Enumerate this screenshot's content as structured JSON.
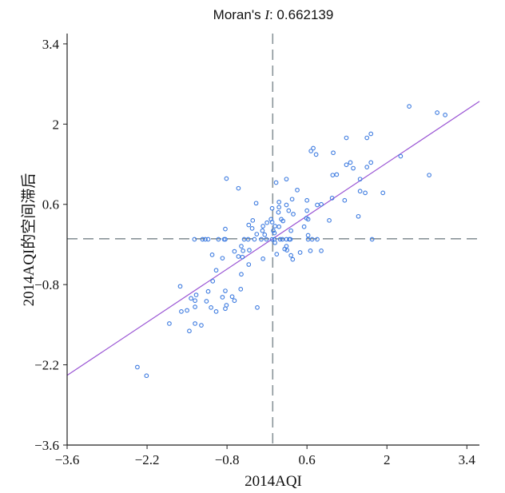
{
  "chart_data": {
    "type": "scatter",
    "title": "Moran's I: 0.662139",
    "title_prefix": "Moran's ",
    "title_italic": "I",
    "title_value": ": 0.662139",
    "moran_i": 0.662139,
    "xlabel": "2014AQI",
    "ylabel": "2014AQI的空间滞后",
    "xlim": [
      -3.6,
      3.62
    ],
    "ylim": [
      -3.6,
      3.58
    ],
    "xticks": [
      "-3.6",
      "-2.2",
      "-0.8",
      "0.6",
      "2",
      "3.4"
    ],
    "yticks": [
      "3.4",
      "2",
      "0.6",
      "-0.8",
      "-2.2",
      "-3.6"
    ],
    "grid": false,
    "reference_lines": {
      "x": 0,
      "y": 0,
      "style": "dashed"
    },
    "fit_line": {
      "slope": 0.662139,
      "intercept": 0
    },
    "colors": {
      "points": "#3d7be0",
      "fit_line": "#9a55d4",
      "reference_lines": "#8a9499"
    },
    "points": [
      [
        -0.81,
        1.05
      ],
      [
        -0.6,
        0.88
      ],
      [
        -0.83,
        0.17
      ],
      [
        -1.37,
        -0.01
      ],
      [
        -1.23,
        -0.01
      ],
      [
        -1.18,
        -0.01
      ],
      [
        -1.13,
        -0.01
      ],
      [
        -0.95,
        -0.01
      ],
      [
        -0.85,
        -0.01
      ],
      [
        -0.83,
        -0.01
      ],
      [
        -0.6,
        -0.31
      ],
      [
        -0.67,
        -0.22
      ],
      [
        -1.06,
        -0.28
      ],
      [
        -0.88,
        -0.34
      ],
      [
        -0.99,
        -0.55
      ],
      [
        -0.55,
        -0.62
      ],
      [
        -1.05,
        -0.74
      ],
      [
        -1.62,
        -0.83
      ],
      [
        -1.13,
        -0.92
      ],
      [
        -0.83,
        -0.91
      ],
      [
        -0.56,
        -0.88
      ],
      [
        -1.34,
        -0.98
      ],
      [
        -1.43,
        -1.04
      ],
      [
        -1.36,
        -1.08
      ],
      [
        -1.16,
        -1.09
      ],
      [
        -0.88,
        -1.02
      ],
      [
        -0.71,
        -1.01
      ],
      [
        -0.67,
        -1.08
      ],
      [
        -1.36,
        -1.19
      ],
      [
        -1.08,
        -1.2
      ],
      [
        -0.81,
        -1.16
      ],
      [
        -0.83,
        -1.22
      ],
      [
        -0.27,
        -1.2
      ],
      [
        -1.6,
        -1.27
      ],
      [
        -1.5,
        -1.25
      ],
      [
        -0.99,
        -1.27
      ],
      [
        -1.81,
        -1.48
      ],
      [
        -1.36,
        -1.48
      ],
      [
        -1.25,
        -1.51
      ],
      [
        -1.46,
        -1.61
      ],
      [
        -2.37,
        -2.24
      ],
      [
        -2.21,
        -2.39
      ],
      [
        2.39,
        2.31
      ],
      [
        2.88,
        2.2
      ],
      [
        3.02,
        2.16
      ],
      [
        1.29,
        1.76
      ],
      [
        1.65,
        1.76
      ],
      [
        1.72,
        1.83
      ],
      [
        0.71,
        1.58
      ],
      [
        0.67,
        1.53
      ],
      [
        0.76,
        1.47
      ],
      [
        1.06,
        1.5
      ],
      [
        1.29,
        1.29
      ],
      [
        1.36,
        1.33
      ],
      [
        1.41,
        1.23
      ],
      [
        1.65,
        1.25
      ],
      [
        1.72,
        1.33
      ],
      [
        2.24,
        1.44
      ],
      [
        2.74,
        1.11
      ],
      [
        1.05,
        1.11
      ],
      [
        1.12,
        1.12
      ],
      [
        1.53,
        1.04
      ],
      [
        0.24,
        1.04
      ],
      [
        0.06,
        0.98
      ],
      [
        0.43,
        0.85
      ],
      [
        1.53,
        0.83
      ],
      [
        1.62,
        0.8
      ],
      [
        1.93,
        0.8
      ],
      [
        1.04,
        0.71
      ],
      [
        1.26,
        0.67
      ],
      [
        0.6,
        0.67
      ],
      [
        0.34,
        0.69
      ],
      [
        0.11,
        0.64
      ],
      [
        -0.29,
        0.62
      ],
      [
        0.24,
        0.59
      ],
      [
        0.78,
        0.59
      ],
      [
        0.85,
        0.6
      ],
      [
        0.11,
        0.55
      ],
      [
        -0.01,
        0.53
      ],
      [
        0.28,
        0.49
      ],
      [
        0.36,
        0.43
      ],
      [
        0.1,
        0.46
      ],
      [
        0.6,
        0.49
      ],
      [
        0.59,
        0.36
      ],
      [
        0.62,
        0.34
      ],
      [
        0.99,
        0.32
      ],
      [
        1.5,
        0.39
      ],
      [
        -0.35,
        0.32
      ],
      [
        -0.1,
        0.28
      ],
      [
        0.15,
        0.34
      ],
      [
        0.18,
        0.31
      ],
      [
        -0.03,
        0.34
      ],
      [
        -0.01,
        0.29
      ],
      [
        -0.42,
        0.24
      ],
      [
        -0.36,
        0.18
      ],
      [
        -0.17,
        0.22
      ],
      [
        0.04,
        0.22
      ],
      [
        0.11,
        0.21
      ],
      [
        0.55,
        0.21
      ],
      [
        0.32,
        0.14
      ],
      [
        -0.18,
        0.14
      ],
      [
        -0.28,
        0.08
      ],
      [
        -0.14,
        0.07
      ],
      [
        0.01,
        0.14
      ],
      [
        0.03,
        0.1
      ],
      [
        -0.5,
        -0.01
      ],
      [
        -0.43,
        -0.01
      ],
      [
        -0.32,
        -0.01
      ],
      [
        -0.2,
        -0.01
      ],
      [
        -0.11,
        -0.01
      ],
      [
        -0.01,
        -0.01
      ],
      [
        0.03,
        -0.01
      ],
      [
        0.13,
        -0.01
      ],
      [
        0.17,
        -0.01
      ],
      [
        0.24,
        -0.01
      ],
      [
        0.29,
        -0.01
      ],
      [
        0.31,
        -0.01
      ],
      [
        0.62,
        -0.01
      ],
      [
        0.69,
        -0.01
      ],
      [
        0.78,
        -0.01
      ],
      [
        1.74,
        -0.01
      ],
      [
        0.62,
        0.06
      ],
      [
        0.04,
        -0.07
      ],
      [
        -0.55,
        -0.13
      ],
      [
        -0.52,
        -0.21
      ],
      [
        -0.41,
        -0.2
      ],
      [
        0.21,
        -0.18
      ],
      [
        0.25,
        -0.2
      ],
      [
        0.24,
        -0.13
      ],
      [
        0.48,
        -0.24
      ],
      [
        0.66,
        -0.21
      ],
      [
        0.85,
        -0.21
      ],
      [
        0.07,
        -0.27
      ],
      [
        0.32,
        -0.29
      ],
      [
        0.35,
        -0.36
      ],
      [
        -0.17,
        -0.35
      ],
      [
        -0.42,
        -0.45
      ],
      [
        -0.53,
        -0.32
      ]
    ]
  }
}
